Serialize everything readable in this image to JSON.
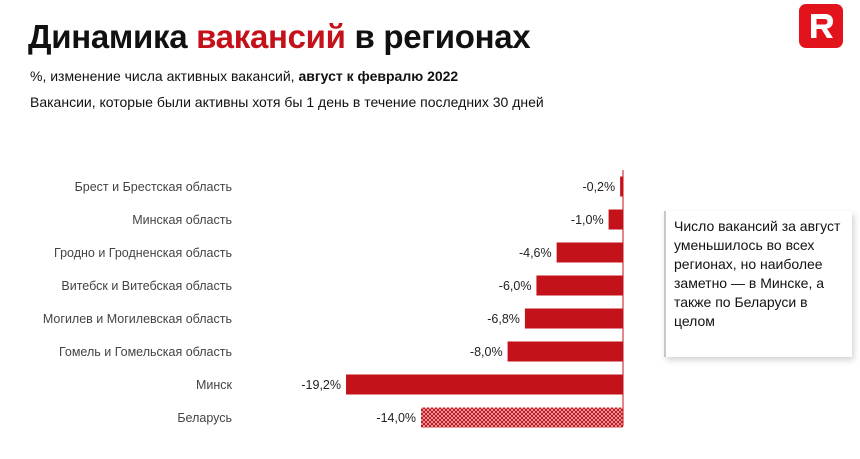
{
  "header": {
    "title_part1": "Динамика ",
    "title_accent": "вакансий",
    "title_part2": " в регионах",
    "subtitle_regular": "%, изменение числа активных вакансий, ",
    "subtitle_bold": "август к февралю 2022",
    "subtitle2": "Вакансии, которые были активны хотя бы 1 день в течение последних 30 дней"
  },
  "colors": {
    "accent": "#c4121a",
    "logo": "#e3131b"
  },
  "callout": {
    "text": "Число вакансий за август уменьшилось во всех регионах, но наиболее заметно — в Минске, а также по Беларуси в целом"
  },
  "chart_data": {
    "type": "bar",
    "orientation": "horizontal",
    "categories": [
      "Брест и Брестская область",
      "Минская область",
      "Гродно и Гродненская область",
      "Витебск и Витебская область",
      "Могилев и Могилевская область",
      "Гомель и Гомельская область",
      "Минск",
      "Беларусь"
    ],
    "values": [
      -0.2,
      -1.0,
      -4.6,
      -6.0,
      -6.8,
      -8.0,
      -19.2,
      -14.0
    ],
    "value_labels": [
      "-0,2%",
      "-1,0%",
      "-4,6%",
      "-6,0%",
      "-6,8%",
      "-8,0%",
      "-19,2%",
      "-14,0%"
    ],
    "hatched_categories": [
      "Беларусь"
    ],
    "xlim": [
      -19.2,
      0
    ],
    "grid": false,
    "legend": "none",
    "bar_color": "#c4121a"
  }
}
